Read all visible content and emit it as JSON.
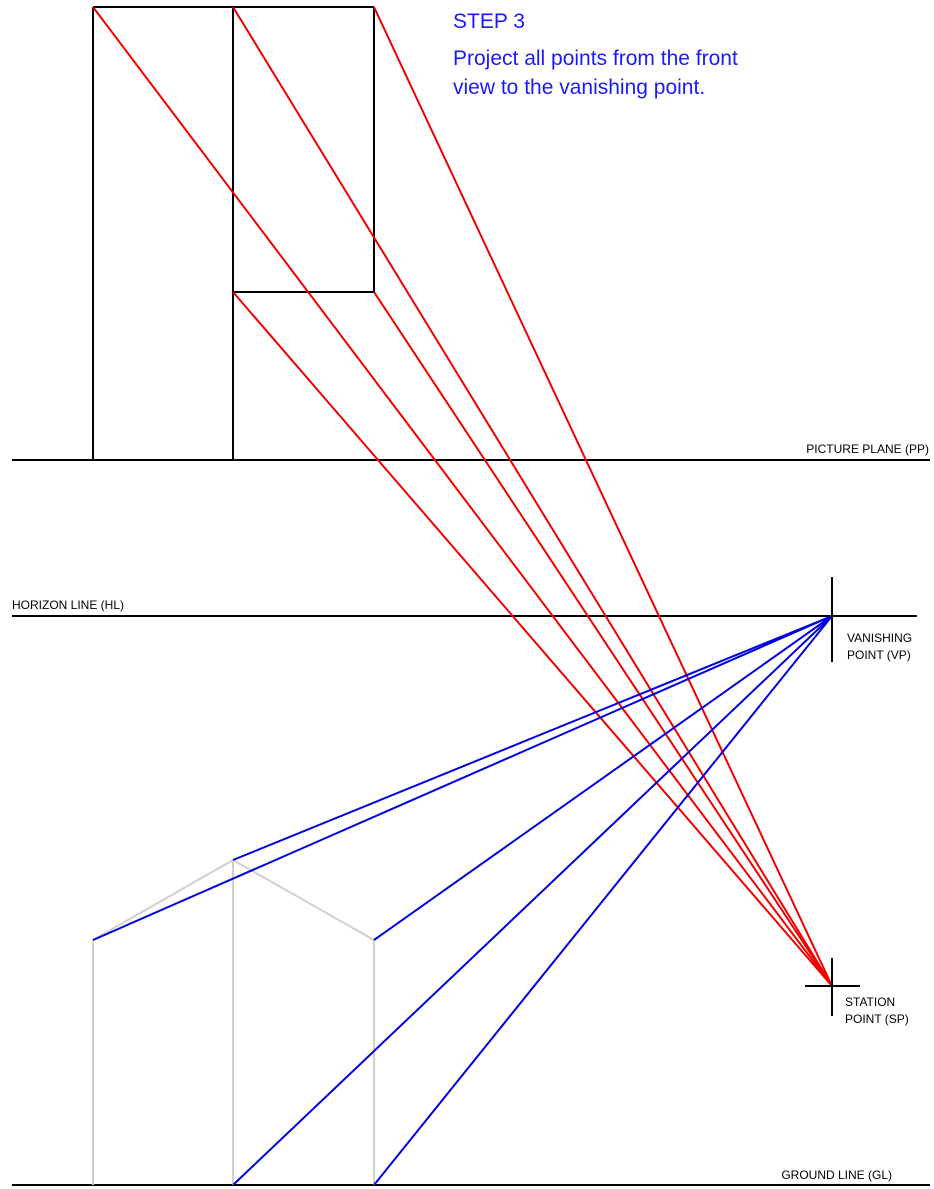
{
  "step": {
    "title": "STEP 3",
    "line1": "Project all points from the front",
    "line2": "view to the vanishing point."
  },
  "labels": {
    "picture_plane": "PICTURE PLANE (PP)",
    "horizon_line": "HORIZON LINE (HL)",
    "vanishing_point_l1": "VANISHING",
    "vanishing_point_l2": "POINT (VP)",
    "station_point_l1": "STATION",
    "station_point_l2": "POINT (SP)",
    "ground_line": "GROUND LINE (GL)"
  },
  "colors": {
    "projector_lines": "#ee0000",
    "vanishing_lines": "#0000dd",
    "plan_view": "#000000",
    "front_view": "#d0d0d0",
    "text_accent": "#1a1aff"
  }
}
